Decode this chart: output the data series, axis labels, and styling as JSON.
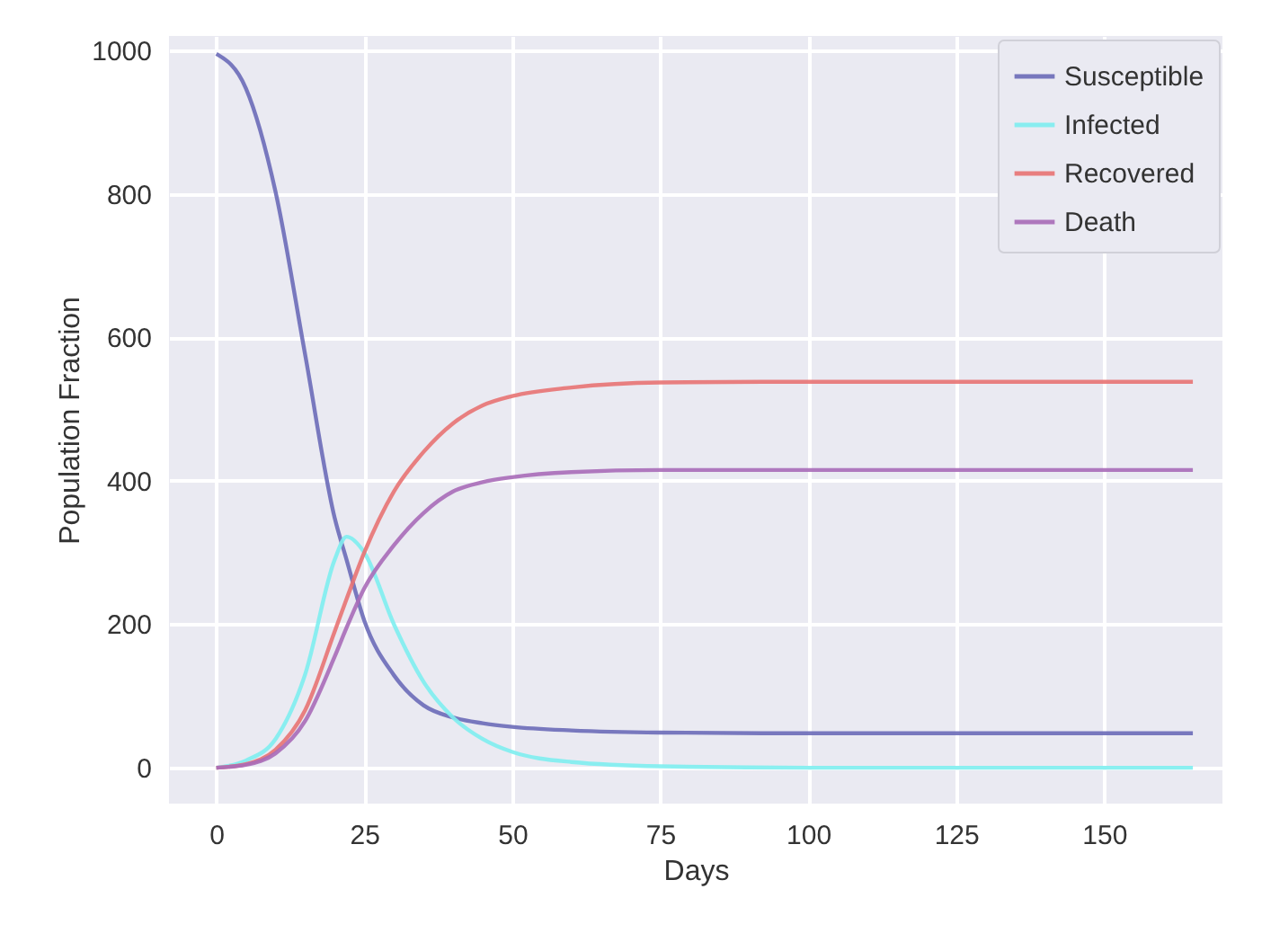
{
  "chart_data": {
    "type": "line",
    "xlabel": "Days",
    "ylabel": "Population Fraction",
    "xlim": [
      -8,
      170
    ],
    "ylim": [
      -50,
      1020
    ],
    "xticks": [
      0,
      25,
      50,
      75,
      100,
      125,
      150
    ],
    "yticks": [
      0,
      200,
      400,
      600,
      800,
      1000
    ],
    "grid": true,
    "legend": "top right",
    "line_style": "solid",
    "marker": "none",
    "x": [
      0,
      5,
      10,
      15,
      20,
      22,
      25,
      30,
      35,
      40,
      45,
      50,
      60,
      75,
      100,
      165
    ],
    "series": [
      {
        "name": "Susceptible",
        "color": "#6b6bb8",
        "values": [
          995,
          947,
          803,
          576,
          348,
          290,
          205,
          129,
          87,
          70,
          62,
          57,
          52,
          49,
          48,
          48
        ]
      },
      {
        "name": "Infected",
        "color": "#7eeef0",
        "values": [
          0,
          10,
          40,
          130,
          290,
          322,
          300,
          200,
          120,
          70,
          40,
          22,
          8,
          2,
          0,
          0
        ]
      },
      {
        "name": "Recovered",
        "color": "#e87373",
        "values": [
          0,
          5,
          25,
          80,
          190,
          235,
          300,
          385,
          440,
          480,
          505,
          518,
          530,
          537,
          538,
          538
        ]
      },
      {
        "name": "Death",
        "color": "#a86bb8",
        "values": [
          0,
          4,
          20,
          65,
          155,
          195,
          250,
          310,
          355,
          385,
          398,
          405,
          412,
          415,
          415,
          415
        ]
      }
    ]
  }
}
